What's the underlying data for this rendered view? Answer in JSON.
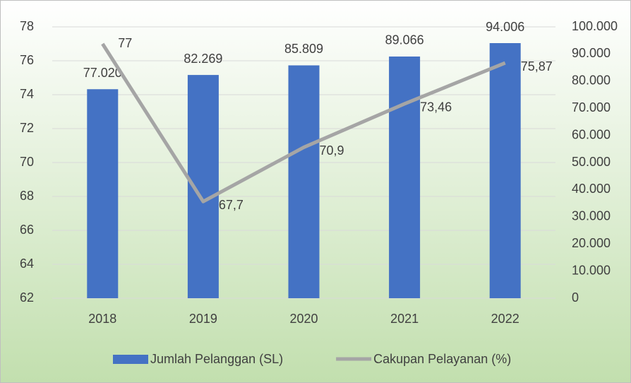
{
  "chart_data": {
    "type": "bar_line",
    "categories": [
      "2018",
      "2019",
      "2020",
      "2021",
      "2022"
    ],
    "series": [
      {
        "name": "Jumlah Pelanggan (SL)",
        "type": "bar",
        "axis": "y2",
        "color": "#4472c4",
        "values": [
          77020,
          82269,
          85809,
          89066,
          94006
        ],
        "value_labels": [
          "77.020",
          "82.269",
          "85.809",
          "89.066",
          "94.006"
        ]
      },
      {
        "name": "Cakupan Pelayanan (%)",
        "type": "line",
        "axis": "y",
        "color": "#a5a5a5",
        "values": [
          77,
          67.7,
          70.9,
          73.46,
          75.87
        ],
        "value_labels": [
          "77",
          "67,7",
          "70,9",
          "73,46",
          "75,87"
        ]
      }
    ],
    "ylim": [
      62,
      78
    ],
    "yticks": [
      62,
      64,
      66,
      68,
      70,
      72,
      74,
      76,
      78
    ],
    "y2lim": [
      0,
      100000
    ],
    "y2ticks": [
      0,
      {
        "value": 10000,
        "label": "10.000"
      },
      {
        "value": 20000,
        "label": "20.000"
      },
      {
        "value": 30000,
        "label": "30.000"
      },
      {
        "value": 40000,
        "label": "40.000"
      },
      {
        "value": 50000,
        "label": "50.000"
      },
      {
        "value": 60000,
        "label": "60.000"
      },
      {
        "value": 70000,
        "label": "70.000"
      },
      {
        "value": 80000,
        "label": "80.000"
      },
      {
        "value": 90000,
        "label": "90.000"
      },
      {
        "value": 100000,
        "label": "100.000"
      }
    ],
    "grid": true,
    "legend": "bottom"
  }
}
